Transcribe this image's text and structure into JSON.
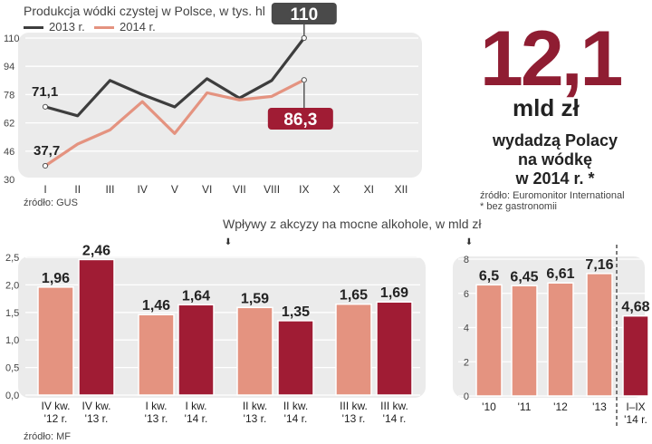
{
  "header": {
    "line_title": "Produkcja wódki czystej w Polsce, w tys. hl",
    "line_source": "źródło: GUS",
    "bar_title": "Wpływy z akcyzy na mocne alkohole, w mld zł",
    "bar_source": "źródło: MF"
  },
  "highlight": {
    "value": "12,1",
    "unit": "mld zł",
    "caption": [
      "wydadzą Polacy",
      "na wódkę",
      "w 2014 r. *"
    ],
    "source": "źródło: Euromonitor International",
    "footnote": "* bez gastronomii"
  },
  "colors": {
    "c2013": "#3d3d3d",
    "c2014": "#e49380",
    "bar_light": "#e49380",
    "bar_dark": "#a01c34",
    "panel": "#ebebeb"
  },
  "chart_data": [
    {
      "type": "line",
      "title": "Produkcja wódki czystej w Polsce, w tys. hl",
      "x": [
        "I",
        "II",
        "III",
        "IV",
        "V",
        "VI",
        "VII",
        "VIII",
        "IX",
        "X",
        "XI",
        "XII"
      ],
      "yticks": [
        "110",
        "94",
        "78",
        "62",
        "46",
        "30"
      ],
      "ylim": [
        30,
        110
      ],
      "series": [
        {
          "name": "2013 r.",
          "values": [
            71.1,
            66,
            86,
            78,
            71,
            87,
            76,
            86,
            110,
            null,
            null,
            null
          ]
        },
        {
          "name": "2014 r.",
          "values": [
            37.7,
            50,
            58,
            74,
            56,
            79,
            75,
            77,
            86.3,
            null,
            null,
            null
          ]
        }
      ],
      "labels": {
        "s2013_first": "71,1",
        "s2014_first": "37,7",
        "s2013_last": "110",
        "s2014_last": "86,3"
      }
    },
    {
      "type": "bar",
      "title": "Wpływy z akcyzy na mocne alkohole, w mld zł",
      "categories": [
        "IV kw. '12 r.",
        "IV kw. '13 r.",
        "I kw. '13 r.",
        "I kw. '14 r.",
        "II kw. '13 r.",
        "II kw. '14 r.",
        "III kw. '13 r.",
        "III kw. '14 r."
      ],
      "tick_lines": [
        [
          "IV kw.",
          "'12 r."
        ],
        [
          "IV kw.",
          "'13 r."
        ],
        [
          "I kw.",
          "'13 r."
        ],
        [
          "I kw.",
          "'14 r."
        ],
        [
          "II kw.",
          "'13 r."
        ],
        [
          "II kw.",
          "'14 r."
        ],
        [
          "III kw.",
          "'13 r."
        ],
        [
          "III kw.",
          "'14 r."
        ]
      ],
      "values": [
        1.96,
        2.46,
        1.46,
        1.64,
        1.59,
        1.35,
        1.65,
        1.69
      ],
      "value_labels": [
        "1,96",
        "2,46",
        "1,46",
        "1,64",
        "1,59",
        "1,35",
        "1,65",
        "1,69"
      ],
      "yticks": [
        "2,5",
        "2,0",
        "1,5",
        "1,0",
        "0,5",
        "0,0"
      ],
      "ylim": [
        0,
        2.5
      ]
    },
    {
      "type": "bar",
      "categories": [
        "'10",
        "'11",
        "'12",
        "'13",
        "I–IX '14 r."
      ],
      "tick_lines": [
        [
          "'10"
        ],
        [
          "'11"
        ],
        [
          "'12"
        ],
        [
          "'13"
        ],
        [
          "I–IX",
          "'14 r."
        ]
      ],
      "values": [
        6.5,
        6.45,
        6.61,
        7.16,
        4.68
      ],
      "value_labels": [
        "6,5",
        "6,45",
        "6,61",
        "7,16",
        "4,68"
      ],
      "yticks": [
        "8",
        "6",
        "4",
        "2",
        "0"
      ],
      "ylim": [
        0,
        8
      ]
    }
  ]
}
